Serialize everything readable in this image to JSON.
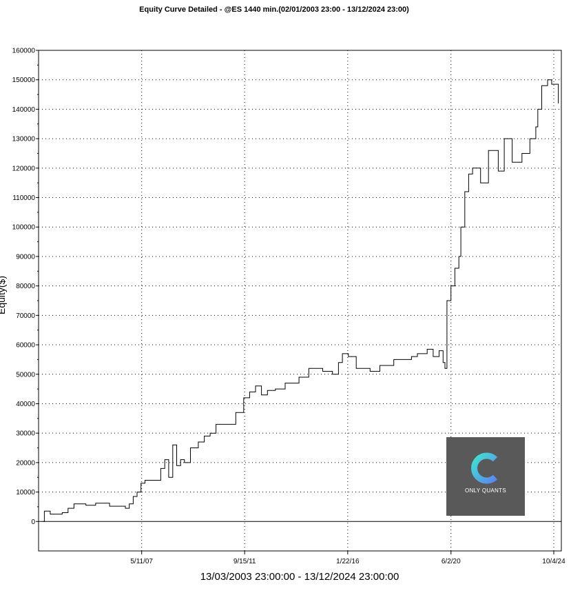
{
  "chart_data": {
    "type": "line",
    "title": "Equity Curve Detailed - @ES 1440 min.(02/01/2003 23:00 - 13/12/2024 23:00)",
    "xlabel": "13/03/2003 23:00:00 - 13/12/2024 23:00:00",
    "ylabel": "Equity($)",
    "ylim": [
      -10000,
      160000
    ],
    "xlim": [
      "2003-01-02",
      "2025-01-29"
    ],
    "yticks": [
      "0",
      "10000",
      "20000",
      "30000",
      "40000",
      "50000",
      "60000",
      "70000",
      "80000",
      "90000",
      "100000",
      "110000",
      "120000",
      "130000",
      "140000",
      "150000",
      "160000"
    ],
    "xticks": [
      {
        "label": "5/11/07",
        "date": "2007-05-11"
      },
      {
        "label": "9/15/11",
        "date": "2011-09-15"
      },
      {
        "label": "1/22/16",
        "date": "2016-01-22"
      },
      {
        "label": "6/2/20",
        "date": "2020-06-02"
      },
      {
        "label": "10/4/24",
        "date": "2024-10-04"
      }
    ],
    "grid": true,
    "series": [
      {
        "step": true,
        "points": [
          [
            "2003-03-13",
            0
          ],
          [
            "2003-04-01",
            3500
          ],
          [
            "2003-07-01",
            2500
          ],
          [
            "2004-01-01",
            3000
          ],
          [
            "2004-04-01",
            4500
          ],
          [
            "2004-07-01",
            6000
          ],
          [
            "2005-01-01",
            5500
          ],
          [
            "2005-06-01",
            6200
          ],
          [
            "2006-01-01",
            5200
          ],
          [
            "2006-06-01",
            5200
          ],
          [
            "2006-09-01",
            4500
          ],
          [
            "2006-11-01",
            6000
          ],
          [
            "2007-01-01",
            8500
          ],
          [
            "2007-03-01",
            10000
          ],
          [
            "2007-05-01",
            13000
          ],
          [
            "2007-07-01",
            14000
          ],
          [
            "2008-01-01",
            14000
          ],
          [
            "2008-03-01",
            18000
          ],
          [
            "2008-05-01",
            21000
          ],
          [
            "2008-07-01",
            15000
          ],
          [
            "2008-09-01",
            26000
          ],
          [
            "2008-11-01",
            19000
          ],
          [
            "2009-01-01",
            21000
          ],
          [
            "2009-03-01",
            20000
          ],
          [
            "2009-06-01",
            25000
          ],
          [
            "2009-10-01",
            27000
          ],
          [
            "2010-01-01",
            29000
          ],
          [
            "2010-04-01",
            30000
          ],
          [
            "2010-07-01",
            33000
          ],
          [
            "2011-01-01",
            33000
          ],
          [
            "2011-05-01",
            37000
          ],
          [
            "2011-09-01",
            42000
          ],
          [
            "2011-12-01",
            44000
          ],
          [
            "2012-03-01",
            46000
          ],
          [
            "2012-06-01",
            43000
          ],
          [
            "2012-09-01",
            44500
          ],
          [
            "2013-01-01",
            45000
          ],
          [
            "2013-06-01",
            47000
          ],
          [
            "2014-01-01",
            49000
          ],
          [
            "2014-06-01",
            52000
          ],
          [
            "2015-01-01",
            51000
          ],
          [
            "2015-06-01",
            50000
          ],
          [
            "2015-09-01",
            54000
          ],
          [
            "2015-11-01",
            57000
          ],
          [
            "2016-02-01",
            56000
          ],
          [
            "2016-06-01",
            52000
          ],
          [
            "2017-01-01",
            51000
          ],
          [
            "2017-06-01",
            53000
          ],
          [
            "2018-01-01",
            55000
          ],
          [
            "2018-10-01",
            56000
          ],
          [
            "2019-01-01",
            57000
          ],
          [
            "2019-06-01",
            58500
          ],
          [
            "2019-09-01",
            56000
          ],
          [
            "2019-12-01",
            58000
          ],
          [
            "2020-02-01",
            54000
          ],
          [
            "2020-03-01",
            52000
          ],
          [
            "2020-04-01",
            75000
          ],
          [
            "2020-06-01",
            80000
          ],
          [
            "2020-08-01",
            86000
          ],
          [
            "2020-10-01",
            90000
          ],
          [
            "2020-11-01",
            100000
          ],
          [
            "2021-01-01",
            112000
          ],
          [
            "2021-03-01",
            118000
          ],
          [
            "2021-05-01",
            120000
          ],
          [
            "2021-09-01",
            115000
          ],
          [
            "2022-01-01",
            126000
          ],
          [
            "2022-06-01",
            119000
          ],
          [
            "2022-09-01",
            130000
          ],
          [
            "2023-01-01",
            122000
          ],
          [
            "2023-06-01",
            125000
          ],
          [
            "2023-10-01",
            130000
          ],
          [
            "2024-01-01",
            134000
          ],
          [
            "2024-02-01",
            140000
          ],
          [
            "2024-04-01",
            148000
          ],
          [
            "2024-07-01",
            150000
          ],
          [
            "2024-09-01",
            148500
          ],
          [
            "2024-12-13",
            142000
          ]
        ]
      }
    ]
  },
  "logo": {
    "text": "ONLY QUANTS",
    "colors": [
      "#3fd0d8",
      "#5d8cf0"
    ]
  }
}
